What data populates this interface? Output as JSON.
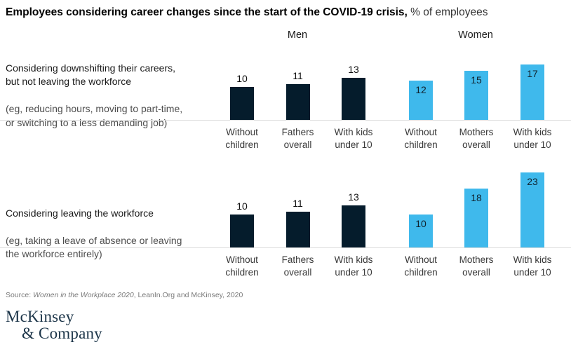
{
  "title": {
    "main": "Employees considering career changes since the start of the COVID-19 crisis,",
    "unit": " % of employees"
  },
  "group_headers": {
    "men": "Men",
    "women": "Women"
  },
  "colors": {
    "men_bar": "#051c2c",
    "women_bar": "#3fb9ec",
    "separator": "#dcdcdc",
    "value_text": "#111111",
    "logo_navy": "#1b3448"
  },
  "chart_data": {
    "type": "bar",
    "unit": "% of employees",
    "categories_men": [
      "Without children",
      "Fathers overall",
      "With kids under 10"
    ],
    "categories_women": [
      "Without children",
      "Mothers overall",
      "With kids under 10"
    ],
    "value_label_style": {
      "men": "above-bar",
      "women": "inside-bar-top"
    },
    "rows": [
      {
        "label_main": "Considering downshifting their careers,\nbut not leaving the workforce",
        "label_sub": "(eg, reducing hours, moving to part-time,\nor switching to a less demanding job)",
        "series": [
          {
            "name": "Men",
            "values": [
              10,
              11,
              13
            ]
          },
          {
            "name": "Women",
            "values": [
              12,
              15,
              17
            ]
          }
        ]
      },
      {
        "label_main": "Considering leaving the workforce",
        "label_sub": "(eg, taking a leave of absence or leaving\nthe workforce entirely)",
        "series": [
          {
            "name": "Men",
            "values": [
              10,
              11,
              13
            ]
          },
          {
            "name": "Women",
            "values": [
              10,
              18,
              23
            ]
          }
        ]
      }
    ]
  },
  "source": {
    "prefix": "Source: ",
    "italic_title": "Women in the Workplace 2020",
    "rest": ", LeanIn.Org and McKinsey, 2020"
  },
  "logo": {
    "line1": "McKinsey",
    "line2": "& Company"
  }
}
